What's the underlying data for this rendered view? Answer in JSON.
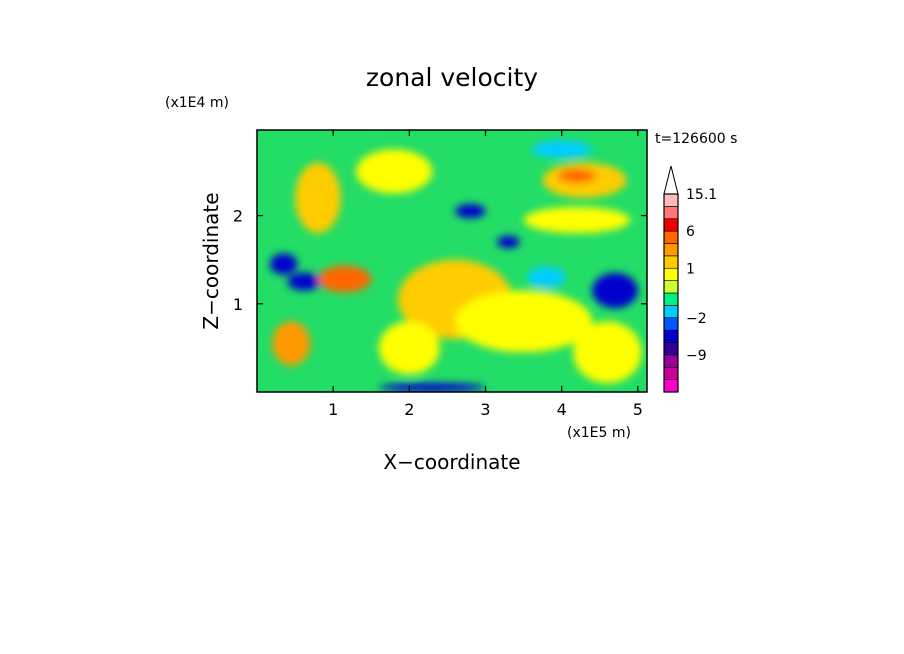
{
  "chart_data": {
    "type": "heatmap",
    "title": "zonal velocity",
    "xlabel": "X−coordinate",
    "ylabel": "Z−coordinate",
    "x_scale_label": "(x1E5 m)",
    "y_scale_label": "(x1E4 m)",
    "time_label": "t=126600 s",
    "xlim": [
      0,
      5.12
    ],
    "ylim": [
      0,
      2.97
    ],
    "x_ticks": [
      1,
      2,
      3,
      4,
      5
    ],
    "x_tick_labels": [
      "1",
      "2",
      "3",
      "4",
      "5"
    ],
    "y_ticks": [
      1,
      2
    ],
    "y_tick_labels": [
      "1",
      "2"
    ],
    "colorbar": {
      "levels": [
        {
          "value": -15,
          "color": "#ff00cc"
        },
        {
          "value": -12,
          "color": "#cc0099"
        },
        {
          "value": -9,
          "color": "#990099"
        },
        {
          "value": -6,
          "color": "#330099"
        },
        {
          "value": -4,
          "color": "#0000cc"
        },
        {
          "value": -2,
          "color": "#0055ff"
        },
        {
          "value": -1,
          "color": "#00ccff"
        },
        {
          "value": 0,
          "color": "#00ee88"
        },
        {
          "value": 0.5,
          "color": "#ccff33"
        },
        {
          "value": 1,
          "color": "#ffff00"
        },
        {
          "value": 2,
          "color": "#ffcc00"
        },
        {
          "value": 4,
          "color": "#ff9900"
        },
        {
          "value": 6,
          "color": "#ff6600"
        },
        {
          "value": 9,
          "color": "#ee0000"
        },
        {
          "value": 12,
          "color": "#ff7777"
        },
        {
          "value": 15.1,
          "color": "#ffbbbb"
        }
      ],
      "tick_labels": [
        {
          "label": "15.1",
          "value": 15.1
        },
        {
          "label": "6",
          "value": 6
        },
        {
          "label": "1",
          "value": 1
        },
        {
          "label": "−2",
          "value": -2
        },
        {
          "label": "−9",
          "value": -9
        }
      ]
    },
    "field_background": "#22dd66",
    "features": [
      {
        "x": 0.35,
        "z": 1.45,
        "rx": 0.18,
        "rz": 0.12,
        "color": "#0000cc"
      },
      {
        "x": 0.62,
        "z": 1.25,
        "rx": 0.22,
        "rz": 0.1,
        "color": "#0000cc"
      },
      {
        "x": 1.15,
        "z": 1.28,
        "rx": 0.35,
        "rz": 0.15,
        "color": "#ff6600"
      },
      {
        "x": 2.6,
        "z": 1.05,
        "rx": 0.75,
        "rz": 0.45,
        "color": "#ffcc00"
      },
      {
        "x": 3.5,
        "z": 0.8,
        "rx": 0.9,
        "rz": 0.35,
        "color": "#ffff00"
      },
      {
        "x": 4.7,
        "z": 1.15,
        "rx": 0.3,
        "rz": 0.2,
        "color": "#0000cc"
      },
      {
        "x": 4.3,
        "z": 2.4,
        "rx": 0.55,
        "rz": 0.2,
        "color": "#ffcc00"
      },
      {
        "x": 4.2,
        "z": 2.45,
        "rx": 0.25,
        "rz": 0.08,
        "color": "#ff6600"
      },
      {
        "x": 2.8,
        "z": 2.05,
        "rx": 0.2,
        "rz": 0.08,
        "color": "#0000cc"
      },
      {
        "x": 3.3,
        "z": 1.7,
        "rx": 0.15,
        "rz": 0.07,
        "color": "#0000cc"
      },
      {
        "x": 0.45,
        "z": 0.55,
        "rx": 0.25,
        "rz": 0.25,
        "color": "#ff9900"
      },
      {
        "x": 2.3,
        "z": 0.05,
        "rx": 0.7,
        "rz": 0.05,
        "color": "#0000cc"
      },
      {
        "x": 1.8,
        "z": 2.5,
        "rx": 0.5,
        "rz": 0.25,
        "color": "#ffff00"
      },
      {
        "x": 4.2,
        "z": 1.95,
        "rx": 0.7,
        "rz": 0.15,
        "color": "#ffff00"
      },
      {
        "x": 4.6,
        "z": 0.45,
        "rx": 0.45,
        "rz": 0.35,
        "color": "#ffff00"
      },
      {
        "x": 2.0,
        "z": 0.5,
        "rx": 0.4,
        "rz": 0.3,
        "color": "#ffff00"
      },
      {
        "x": 0.8,
        "z": 2.2,
        "rx": 0.3,
        "rz": 0.4,
        "color": "#ffcc00"
      },
      {
        "x": 3.8,
        "z": 1.3,
        "rx": 0.25,
        "rz": 0.12,
        "color": "#00ccff"
      },
      {
        "x": 4.0,
        "z": 2.75,
        "rx": 0.4,
        "rz": 0.1,
        "color": "#00ccff"
      }
    ]
  }
}
